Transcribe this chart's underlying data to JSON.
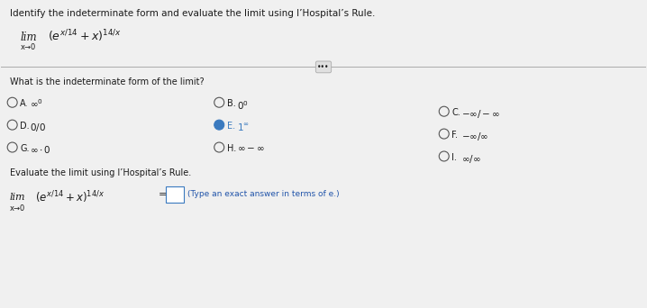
{
  "title": "Identify the indeterminate form and evaluate the limit using l’Hospital’s Rule.",
  "question": "What is the indeterminate form of the limit?",
  "options": [
    {
      "label": "A.",
      "text": "$\\infty^0$",
      "selected": false
    },
    {
      "label": "B.",
      "text": "$0^0$",
      "selected": false
    },
    {
      "label": "C.",
      "text": "$-\\infty/-\\infty$",
      "selected": false
    },
    {
      "label": "D.",
      "text": "$0/0$",
      "selected": false
    },
    {
      "label": "E.",
      "text": "$1^{\\infty}$",
      "selected": true
    },
    {
      "label": "F.",
      "text": "$-\\infty/\\infty$",
      "selected": false
    },
    {
      "label": "G.",
      "text": "$\\infty \\cdot 0$",
      "selected": false
    },
    {
      "label": "H.",
      "text": "$\\infty - \\infty$",
      "selected": false
    },
    {
      "label": "I.",
      "text": "$\\infty/\\infty$",
      "selected": false
    }
  ],
  "eval_label": "Evaluate the limit using l’Hospital’s Rule.",
  "eval_type": "(Type an exact answer in terms of e.)",
  "bg_color": "#f0f0f0",
  "panel_color": "#e8e8e8",
  "text_color": "#1a1a1a",
  "selected_fill": "#3a7abf",
  "radio_edge": "#555555",
  "divider_color": "#aaaaaa",
  "dots_bg": "#e0e0e0",
  "answer_box_edge": "#3a7abf",
  "answer_box_fill": "#ffffff",
  "type_color": "#2255aa",
  "font_size_title": 7.5,
  "font_size_body": 7.0,
  "font_size_math": 8.5,
  "font_size_small": 6.0
}
